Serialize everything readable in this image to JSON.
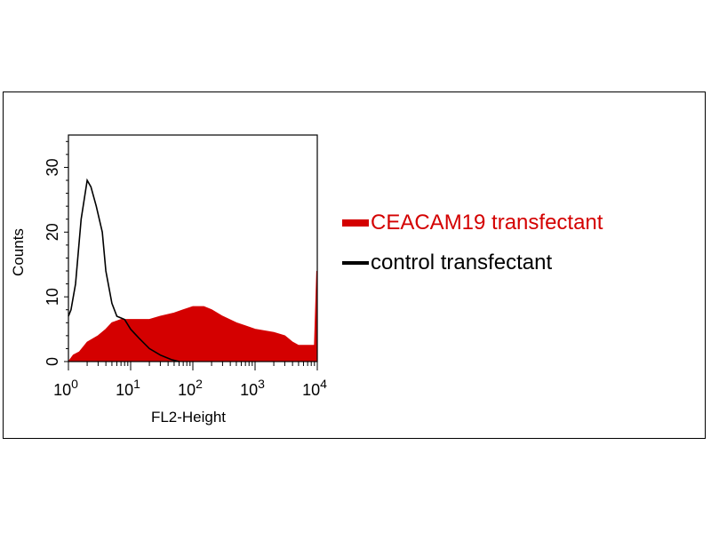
{
  "chart_data": {
    "type": "area",
    "xscale": "log",
    "xlim": [
      1,
      10000
    ],
    "ylim": [
      0,
      35
    ],
    "xlabel": "FL2-Height",
    "ylabel": "Counts",
    "x_ticks": [
      {
        "value": 1,
        "base": "10",
        "exp": "0"
      },
      {
        "value": 10,
        "base": "10",
        "exp": "1"
      },
      {
        "value": 100,
        "base": "10",
        "exp": "2"
      },
      {
        "value": 1000,
        "base": "10",
        "exp": "3"
      },
      {
        "value": 10000,
        "base": "10",
        "exp": "4"
      }
    ],
    "y_ticks": [
      0,
      10,
      20,
      30
    ],
    "legend_position": "right",
    "series": [
      {
        "name": "CEACAM19 transfectant",
        "color": "#d40000",
        "style": "filled",
        "x": [
          1,
          1.2,
          1.5,
          2,
          3,
          4,
          5,
          7,
          10,
          15,
          20,
          30,
          50,
          70,
          100,
          150,
          200,
          300,
          500,
          700,
          1000,
          2000,
          3000,
          4000,
          5000,
          6000,
          7000,
          8000,
          9000,
          9800,
          10000
        ],
        "y": [
          0,
          1,
          1.5,
          3,
          4,
          5,
          6,
          6.5,
          6.5,
          6.5,
          6.5,
          7,
          7.5,
          8,
          8.5,
          8.5,
          8,
          7,
          6,
          5.5,
          5,
          4.5,
          4,
          3,
          2.5,
          2.5,
          2.5,
          2.5,
          2.5,
          14,
          0
        ]
      },
      {
        "name": "control transfectant",
        "color": "#000000",
        "style": "line",
        "x": [
          1,
          1.1,
          1.3,
          1.6,
          2,
          2.3,
          2.8,
          3.5,
          4,
          5,
          6,
          8,
          10,
          14,
          20,
          30,
          45,
          60
        ],
        "y": [
          7,
          8,
          12,
          22,
          28,
          27,
          24,
          20,
          14,
          9,
          7,
          6.5,
          5,
          3.5,
          2,
          1,
          0.3,
          0
        ]
      }
    ]
  }
}
